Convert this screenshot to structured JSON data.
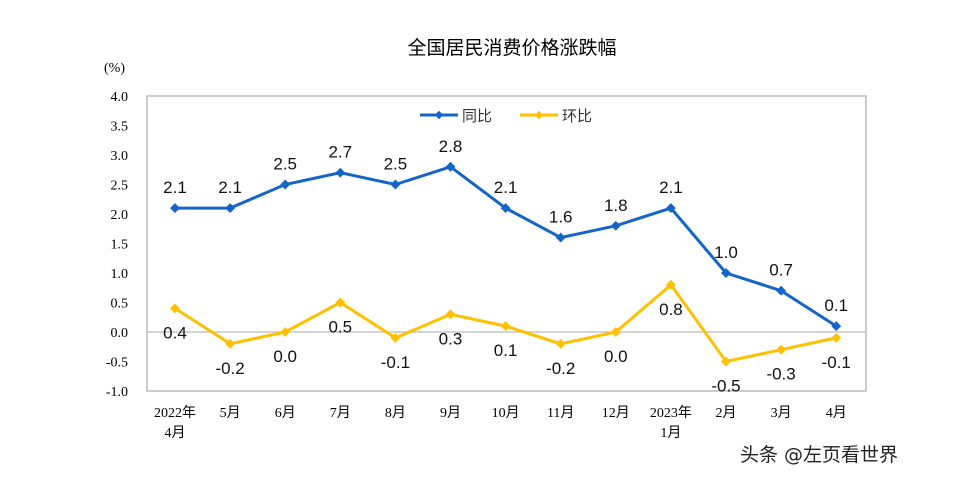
{
  "chart_data": {
    "type": "line",
    "title": "全国居民消费价格涨跌幅",
    "ylabel": "(%)",
    "ylim": [
      -1.0,
      4.0
    ],
    "yticks": [
      "4.0",
      "3.5",
      "3.0",
      "2.5",
      "2.0",
      "1.5",
      "1.0",
      "0.5",
      "0.0",
      "-0.5",
      "-1.0"
    ],
    "categories": [
      [
        "2022年",
        "4月"
      ],
      [
        "5月"
      ],
      [
        "6月"
      ],
      [
        "7月"
      ],
      [
        "8月"
      ],
      [
        "9月"
      ],
      [
        "10月"
      ],
      [
        "11月"
      ],
      [
        "12月"
      ],
      [
        "2023年",
        "1月"
      ],
      [
        "2月"
      ],
      [
        "3月"
      ],
      [
        "4月"
      ]
    ],
    "legend_position": "top-center",
    "grid": false,
    "series": [
      {
        "name": "同比",
        "color": "#1565C8",
        "values": [
          2.1,
          2.1,
          2.5,
          2.7,
          2.5,
          2.8,
          2.1,
          1.6,
          1.8,
          2.1,
          1.0,
          0.7,
          0.1
        ],
        "labels": [
          "2.1",
          "2.1",
          "2.5",
          "2.7",
          "2.5",
          "2.8",
          "2.1",
          "1.6",
          "1.8",
          "2.1",
          "1.0",
          "0.7",
          "0.1"
        ]
      },
      {
        "name": "环比",
        "color": "#FFC000",
        "values": [
          0.4,
          -0.2,
          0.0,
          0.5,
          -0.1,
          0.3,
          0.1,
          -0.2,
          0.0,
          0.8,
          -0.5,
          -0.3,
          -0.1
        ],
        "labels": [
          "0.4",
          "-0.2",
          "0.0",
          "0.5",
          "-0.1",
          "0.3",
          "0.1",
          "-0.2",
          "0.0",
          "0.8",
          "-0.5",
          "-0.3",
          "-0.1"
        ]
      }
    ]
  },
  "watermark": "头条 @左页看世界"
}
